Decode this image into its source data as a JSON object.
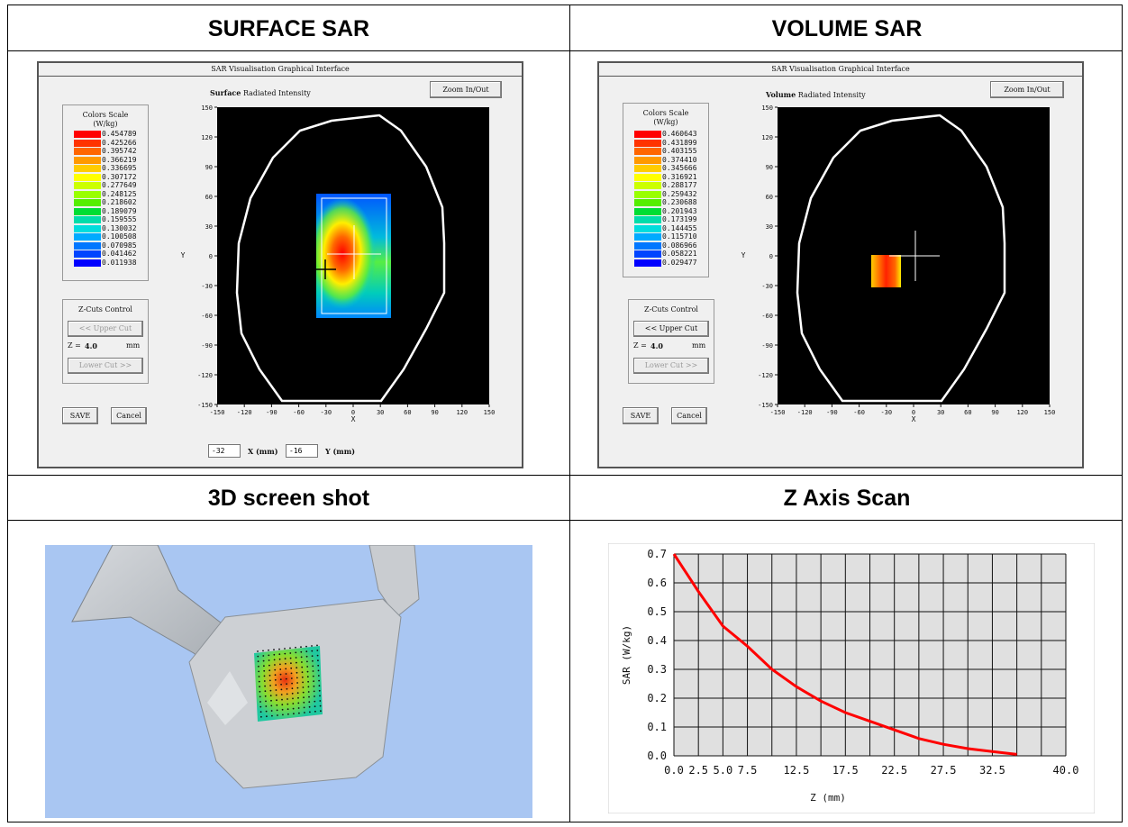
{
  "cells": {
    "surface_title": "SURFACE SAR",
    "volume_title": "VOLUME SAR",
    "screenshot_title": "3D screen shot",
    "zscan_title": "Z Axis Scan"
  },
  "surface": {
    "window_title": "SAR Visualisation Graphical Interface",
    "mode_label": "Surface",
    "intensity_label": "Radiated Intensity",
    "zoom_button": "Zoom In/Out",
    "scale_title": "Colors Scale",
    "scale_unit": "(W/kg)",
    "scale_values": [
      "0.454789",
      "0.425266",
      "0.395742",
      "0.366219",
      "0.336695",
      "0.307172",
      "0.277649",
      "0.248125",
      "0.218602",
      "0.189079",
      "0.159555",
      "0.130032",
      "0.100508",
      "0.070985",
      "0.041462",
      "0.011938"
    ],
    "zcuts_title": "Z-Cuts Control",
    "upper_cut": "<< Upper Cut",
    "z_label": "Z =",
    "z_value": "4.0",
    "z_unit": "mm",
    "lower_cut": "Lower Cut >>",
    "save_button": "SAVE",
    "cancel_button": "Cancel",
    "x_value": "-32",
    "x_field_label": "X (mm)",
    "y_value": "-16",
    "y_field_label": "Y (mm)",
    "xlabel": "X",
    "ylabel": "Y"
  },
  "volume": {
    "window_title": "SAR Visualisation Graphical Interface",
    "mode_label": "Volume",
    "intensity_label": "Radiated Intensity",
    "zoom_button": "Zoom In/Out",
    "scale_title": "Colors Scale",
    "scale_unit": "(W/kg)",
    "scale_values": [
      "0.460643",
      "0.431899",
      "0.403155",
      "0.374410",
      "0.345666",
      "0.316921",
      "0.288177",
      "0.259432",
      "0.230688",
      "0.201943",
      "0.173199",
      "0.144455",
      "0.115710",
      "0.086966",
      "0.058221",
      "0.029477"
    ],
    "zcuts_title": "Z-Cuts Control",
    "upper_cut": "<< Upper Cut",
    "z_label": "Z =",
    "z_value": "4.0",
    "z_unit": "mm",
    "lower_cut": "Lower Cut >>",
    "save_button": "SAVE",
    "cancel_button": "Cancel",
    "xlabel": "X",
    "ylabel": "Y"
  },
  "plot_ticks": {
    "x": [
      "-150",
      "-120",
      "-90",
      "-60",
      "-30",
      "0",
      "30",
      "60",
      "90",
      "120",
      "150"
    ],
    "y": [
      "150",
      "120",
      "90",
      "60",
      "30",
      "0",
      "-30",
      "-60",
      "-90",
      "-120",
      "-150"
    ]
  },
  "scale_colors": [
    "#ff0000",
    "#ff3300",
    "#ff6600",
    "#ff9900",
    "#ffcc00",
    "#ffff00",
    "#ccff00",
    "#99ff00",
    "#55ee00",
    "#00dd33",
    "#00ddaa",
    "#00dddd",
    "#00aaff",
    "#0077ff",
    "#0044ff",
    "#0000ff"
  ],
  "chart_data": {
    "type": "line",
    "title": "",
    "xlabel": "Z (mm)",
    "ylabel": "SAR (W/kg)",
    "x_ticks": [
      "0.0",
      "2.5",
      "5.0",
      "7.5",
      "12.5",
      "17.5",
      "22.5",
      "27.5",
      "32.5",
      "40.0"
    ],
    "y_ticks": [
      "0.7",
      "0.6",
      "0.5",
      "0.4",
      "0.3",
      "0.2",
      "0.1",
      "0.0"
    ],
    "xlim": [
      0,
      40
    ],
    "ylim": [
      0,
      0.7
    ],
    "grid": true,
    "series": [
      {
        "color": "#ff0000",
        "x": [
          0,
          2.5,
          5,
          7.5,
          10,
          12.5,
          15,
          17.5,
          20,
          22.5,
          25,
          27.5,
          30,
          32.5,
          35
        ],
        "y": [
          0.7,
          0.57,
          0.45,
          0.38,
          0.3,
          0.24,
          0.19,
          0.15,
          0.12,
          0.09,
          0.06,
          0.04,
          0.025,
          0.015,
          0.005
        ]
      }
    ]
  }
}
